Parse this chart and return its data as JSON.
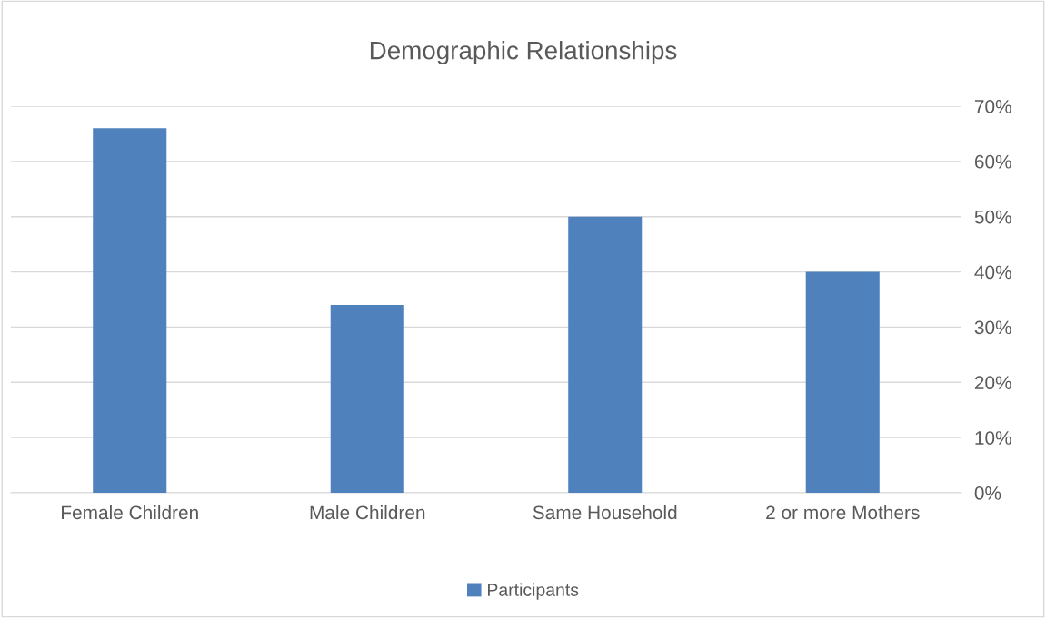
{
  "chart_data": {
    "type": "bar",
    "title": "Demographic Relationships",
    "categories": [
      "Female Children",
      "Male Children",
      "Same Household",
      "2 or more Mothers"
    ],
    "series": [
      {
        "name": "Participants",
        "color": "#4f81bd",
        "values": [
          66,
          34,
          50,
          40
        ]
      }
    ],
    "ylim": [
      0,
      70
    ],
    "yticks": [
      {
        "value": 0,
        "label": "0%"
      },
      {
        "value": 10,
        "label": "10%"
      },
      {
        "value": 20,
        "label": "20%"
      },
      {
        "value": 30,
        "label": "30%"
      },
      {
        "value": 40,
        "label": "40%"
      },
      {
        "value": 50,
        "label": "50%"
      },
      {
        "value": 60,
        "label": "60%"
      },
      {
        "value": 70,
        "label": "70%"
      }
    ],
    "grid": "y",
    "legend": "bottom"
  }
}
